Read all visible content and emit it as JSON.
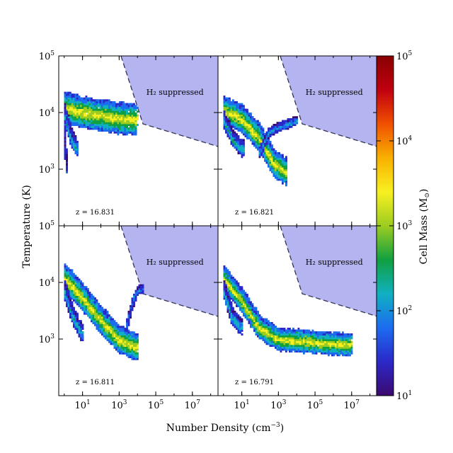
{
  "chart_data": {
    "type": "heatmap",
    "title": "",
    "xlabel": "Number Density (cm",
    "xlabel_exp": "−3",
    "xlabel_close": ")",
    "ylabel": "Temperature (K)",
    "x_scale": "log",
    "y_scale": "log",
    "xlim_log10": [
      -0.3,
      8.4
    ],
    "ylim_log10": [
      2.0,
      5.0
    ],
    "x_ticks": [
      {
        "base": "10",
        "exp": "1",
        "log10": 1
      },
      {
        "base": "10",
        "exp": "3",
        "log10": 3
      },
      {
        "base": "10",
        "exp": "5",
        "log10": 5
      },
      {
        "base": "10",
        "exp": "7",
        "log10": 7
      }
    ],
    "y_ticks": [
      {
        "base": "10",
        "exp": "3",
        "log10": 3
      },
      {
        "base": "10",
        "exp": "4",
        "log10": 4
      },
      {
        "base": "10",
        "exp": "5",
        "log10": 5
      }
    ],
    "region_label": "H₂ suppressed",
    "region_boundary_log10": [
      [
        3.1,
        5.0
      ],
      [
        4.3,
        3.8
      ],
      [
        8.4,
        3.4
      ]
    ],
    "colorbar": {
      "label": "Cell Mass (M",
      "label_sym": "⊙",
      "label_close": ")",
      "scale": "log",
      "range_log10": [
        1,
        5
      ],
      "ticks": [
        {
          "base": "10",
          "exp": "1",
          "log10": 1
        },
        {
          "base": "10",
          "exp": "2",
          "log10": 2
        },
        {
          "base": "10",
          "exp": "3",
          "log10": 3
        },
        {
          "base": "10",
          "exp": "4",
          "log10": 4
        },
        {
          "base": "10",
          "exp": "5",
          "log10": 5
        }
      ],
      "colors": [
        "#3b0a6e",
        "#2b28c8",
        "#1c6cf0",
        "#10b0c0",
        "#10a040",
        "#9ccc20",
        "#f8f020",
        "#f8b000",
        "#f05000",
        "#c00010",
        "#880000"
      ]
    },
    "panels": [
      {
        "label": "z = 16.831",
        "position": "top-left",
        "tracks": [
          {
            "pts": [
              [
                0.0,
                4.1
              ],
              [
                1.0,
                4.0
              ],
              [
                2.0,
                3.95
              ],
              [
                3.0,
                3.9
              ],
              [
                4.0,
                3.88
              ]
            ],
            "width": 0.14,
            "peak": 3.6
          },
          {
            "pts": [
              [
                0.0,
                4.0
              ],
              [
                0.35,
                3.6
              ],
              [
                0.7,
                3.35
              ]
            ],
            "width": 0.1,
            "peak": 2.6
          },
          {
            "pts": [
              [
                0.0,
                3.8
              ],
              [
                0.1,
                3.2
              ],
              [
                0.15,
                2.95
              ]
            ],
            "width": 0.06,
            "peak": 2.0
          }
        ]
      },
      {
        "label": "z = 16.821",
        "position": "top-right",
        "tracks": [
          {
            "pts": [
              [
                0.0,
                4.05
              ],
              [
                1.0,
                3.9
              ],
              [
                2.0,
                3.55
              ],
              [
                2.8,
                3.1
              ],
              [
                3.5,
                2.95
              ]
            ],
            "width": 0.12,
            "peak": 3.6
          },
          {
            "pts": [
              [
                0.0,
                3.9
              ],
              [
                0.6,
                3.5
              ],
              [
                1.1,
                3.35
              ]
            ],
            "width": 0.1,
            "peak": 2.6
          },
          {
            "pts": [
              [
                2.0,
                3.3
              ],
              [
                2.5,
                3.65
              ],
              [
                3.0,
                3.75
              ],
              [
                4.0,
                3.85
              ]
            ],
            "width": 0.06,
            "peak": 2.4
          }
        ]
      },
      {
        "label": "z = 16.811",
        "position": "bottom-left",
        "tracks": [
          {
            "pts": [
              [
                0.0,
                4.1
              ],
              [
                1.0,
                3.75
              ],
              [
                2.0,
                3.35
              ],
              [
                3.0,
                3.0
              ],
              [
                4.0,
                2.85
              ]
            ],
            "width": 0.12,
            "peak": 3.6
          },
          {
            "pts": [
              [
                0.0,
                3.9
              ],
              [
                0.5,
                3.4
              ],
              [
                1.0,
                3.1
              ]
            ],
            "width": 0.1,
            "peak": 2.6
          },
          {
            "pts": [
              [
                3.4,
                3.2
              ],
              [
                3.7,
                3.6
              ],
              [
                4.0,
                3.85
              ],
              [
                4.3,
                3.9
              ]
            ],
            "width": 0.06,
            "peak": 2.3
          }
        ]
      },
      {
        "label": "z = 16.791",
        "position": "bottom-right",
        "tracks": [
          {
            "pts": [
              [
                0.0,
                4.1
              ],
              [
                1.0,
                3.7
              ],
              [
                2.0,
                3.2
              ],
              [
                3.0,
                3.0
              ],
              [
                5.0,
                2.95
              ],
              [
                7.0,
                2.9
              ]
            ],
            "width": 0.1,
            "peak": 3.6
          },
          {
            "pts": [
              [
                0.0,
                3.9
              ],
              [
                0.5,
                3.4
              ],
              [
                1.0,
                3.2
              ]
            ],
            "width": 0.1,
            "peak": 2.6
          }
        ]
      }
    ]
  }
}
